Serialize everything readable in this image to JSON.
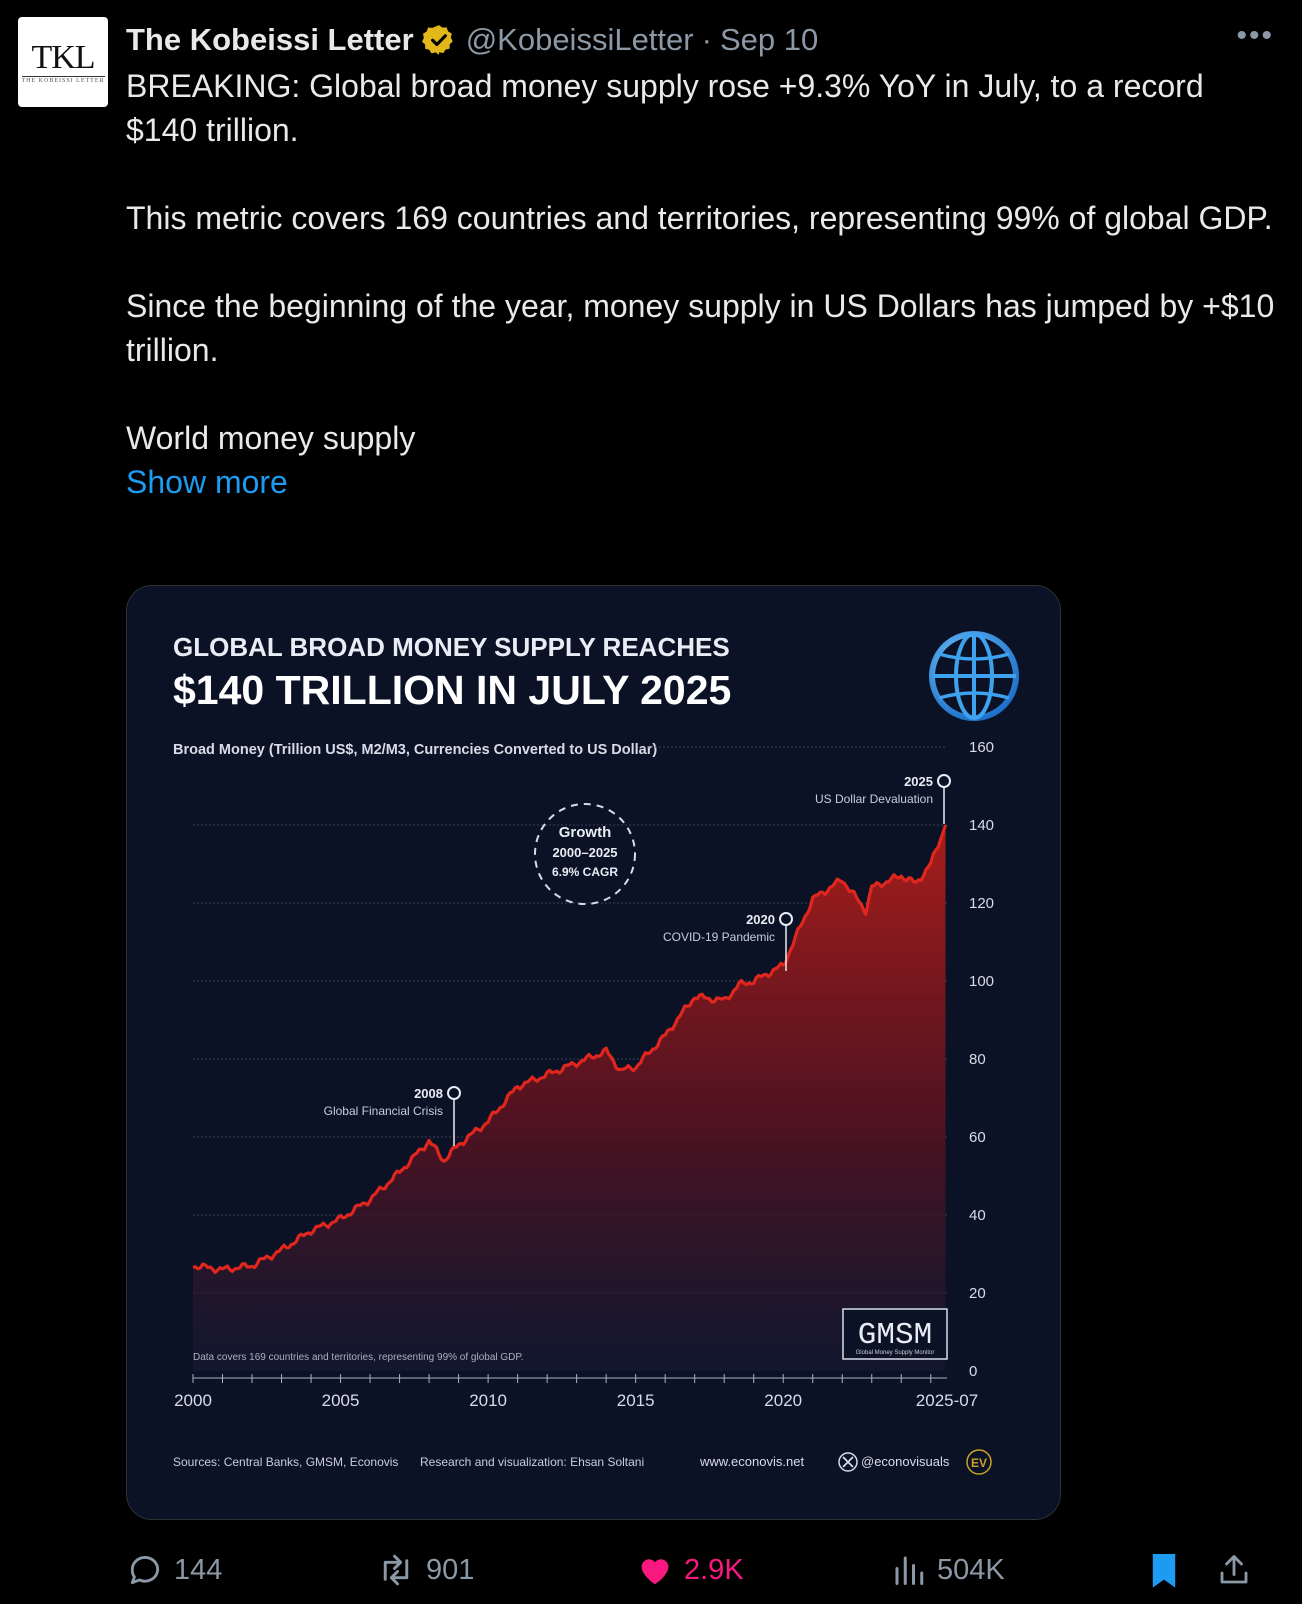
{
  "tweet": {
    "avatar_text": "TKL",
    "avatar_subtext": "THE KOBEISSI LETTER",
    "display_name": "The Kobeissi Letter",
    "handle": "@KobeissiLetter",
    "separator": "·",
    "date": "Sep 10",
    "more_icon": "more-horizontal-icon",
    "paragraphs": [
      "BREAKING: Global broad money supply rose +9.3% YoY in July, to a record $140 trillion.",
      "This metric covers 169 countries and territories, representing 99% of global GDP.",
      "Since the beginning of the year, money supply in US Dollars has jumped by +$10 trillion.",
      "World money supply"
    ],
    "show_more": "Show more",
    "colors": {
      "link": "#1d9bf0",
      "like": "#f91880",
      "muted": "#8b98a5",
      "verified": "#e2b719"
    }
  },
  "actions": {
    "replies": "144",
    "reposts": "901",
    "likes": "2.9K",
    "views": "504K"
  },
  "infographic": {
    "title_line1": "GLOBAL BROAD MONEY SUPPLY REACHES",
    "title_line2": "$140 TRILLION IN JULY 2025",
    "subtitle": "Broad Money (Trillion US$, M2/M3, Currencies Converted to US Dollar)",
    "growth_label_1": "Growth",
    "growth_label_2": "2000–2025",
    "growth_label_3": "6.9% CAGR",
    "ann_2008_year": "2008",
    "ann_2008_text": "Global Financial Crisis",
    "ann_2020_year": "2020",
    "ann_2020_text": "COVID-19 Pandemic",
    "ann_2025_year": "2025",
    "ann_2025_text": "US Dollar Devaluation",
    "coverage_note": "Data covers 169 countries and territories, representing 99% of global GDP.",
    "gmsm": "GMSM",
    "gmsm_sub": "Global Money Supply Monitor",
    "sources": "Sources: Central Banks, GMSM, Econovis",
    "research": "Research and visualization: Ehsan Soltani",
    "website": "www.econovis.net",
    "twitter": "@econovisuals",
    "ev_logo": "EV"
  },
  "chart_data": {
    "type": "area",
    "ylim": [
      0,
      160
    ],
    "y_ticks": [
      "0",
      "20",
      "40",
      "60",
      "80",
      "100",
      "120",
      "140",
      "160"
    ],
    "x_ticks": [
      "2000",
      "2005",
      "2010",
      "2015",
      "2020",
      "2025-07"
    ],
    "grid": true,
    "series": [
      {
        "name": "",
        "color": "#e0261d",
        "x": [
          2000.0,
          2001.0,
          2002.0,
          2003.0,
          2004.0,
          2005.0,
          2006.0,
          2007.0,
          2008.0,
          2008.5,
          2009.0,
          2010.0,
          2011.0,
          2012.0,
          2013.0,
          2014.0,
          2014.5,
          2015.0,
          2016.0,
          2017.0,
          2018.0,
          2018.5,
          2019.0,
          2020.0,
          2021.0,
          2022.0,
          2022.8,
          2023.0,
          2024.0,
          2024.5,
          2025.0,
          2025.5
        ],
        "y": [
          27,
          26,
          27,
          31,
          36,
          39,
          44,
          51,
          59,
          54,
          58,
          64,
          73,
          76,
          79,
          82,
          77,
          78,
          86,
          96,
          95,
          99,
          100,
          104,
          121,
          126,
          118,
          124,
          127,
          125,
          130,
          140
        ]
      }
    ]
  }
}
